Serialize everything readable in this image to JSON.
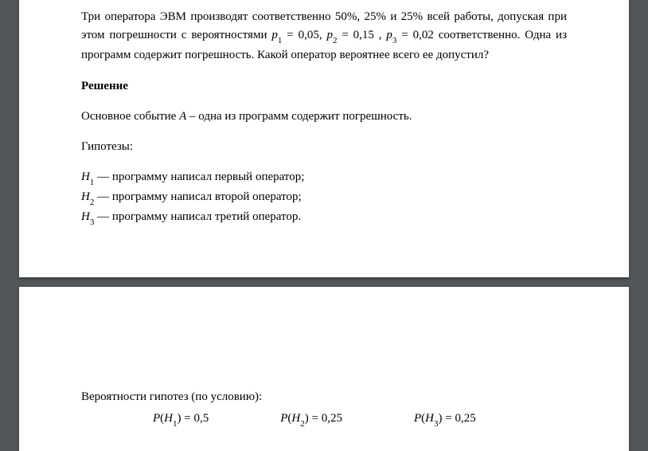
{
  "problem": {
    "text_line1": "Три оператора ЭВМ производят соответственно  50%,  25% и 25%  всей работы, допуская при этом погрешности с вероятностями ",
    "p1_var": "p",
    "p1_sub": "1",
    "p1_eq": " = 0,05",
    "sep1": ", ",
    "p2_var": "p",
    "p2_sub": "2",
    "p2_eq": " = 0,15",
    "sep2": " , ",
    "p3_var": "p",
    "p3_sub": "3",
    "p3_eq": " = 0,02",
    "text_line2": " соответственно. Одна из программ содержит погрешность. Какой оператор вероятнее всего ее допустил?"
  },
  "solution_label": "Решение",
  "main_event": {
    "prefix": "Основное событие ",
    "var": "A",
    "suffix": " – одна из программ содержит погрешность."
  },
  "hypotheses_label": "Гипотезы:",
  "hypotheses": [
    {
      "var": "H",
      "sub": "1",
      "text": " — программу написал первый оператор;"
    },
    {
      "var": "H",
      "sub": "2",
      "text": " — программу написал второй оператор;"
    },
    {
      "var": "H",
      "sub": "3",
      "text": " — программу написал третий оператор."
    }
  ],
  "prob_label": "Вероятности гипотез (по условию):",
  "probs": [
    {
      "lhs_func": "P",
      "lhs_var": "H",
      "lhs_sub": "1",
      "rhs": " = 0,5"
    },
    {
      "lhs_func": "P",
      "lhs_var": "H",
      "lhs_sub": "2",
      "rhs": " = 0,25"
    },
    {
      "lhs_func": "P",
      "lhs_var": "H",
      "lhs_sub": "3",
      "rhs": " = 0,25"
    }
  ]
}
